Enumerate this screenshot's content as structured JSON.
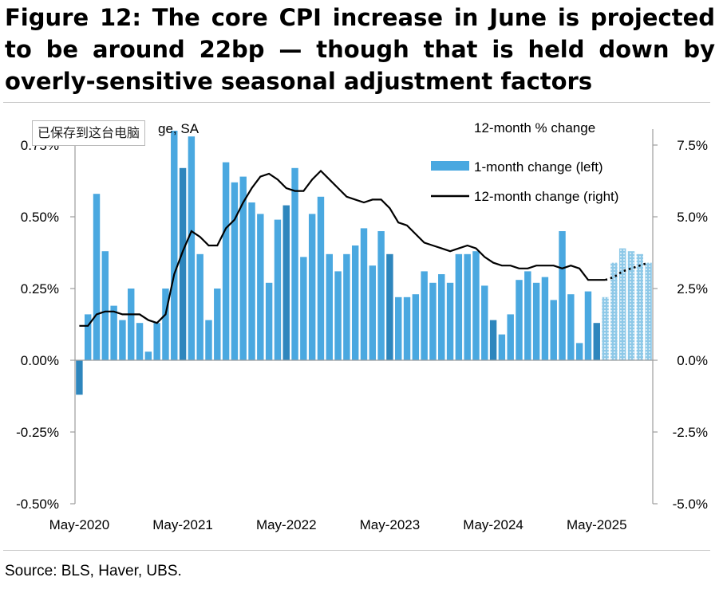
{
  "title": "Figure 12: The core CPI increase in June is projected to be around 22bp — though that is held down by overly-sensitive seasonal adjustment factors",
  "source": "Source: BLS, Haver, UBS.",
  "watermark_text": "已保存到这台电脑",
  "colors": {
    "bar": "#4aa8e0",
    "bar_highlight": "#2e86bd",
    "projected": "#8ec9e8",
    "line": "#000000",
    "axis": "#9c9c9c"
  },
  "chart_data": {
    "type": "bar+line",
    "left_axis_title": "% change, SA",
    "left_axis_title_visible": "ge, SA",
    "right_axis_title": "12-month % change",
    "ylim_left": [
      -0.5,
      0.75
    ],
    "ylim_right": [
      -5.0,
      7.5
    ],
    "y_ticks_left": [
      "0.75%",
      "0.50%",
      "0.25%",
      "0.00%",
      "-0.25%",
      "-0.50%"
    ],
    "y_ticks_right": [
      "7.5%",
      "5.0%",
      "2.5%",
      "0.0%",
      "-2.5%",
      "-5.0%"
    ],
    "x_ticks": [
      "May-2020",
      "May-2021",
      "May-2022",
      "May-2023",
      "May-2024",
      "May-2025"
    ],
    "legend": {
      "bars": "1-month change (left)",
      "line": "12-month change (right)"
    },
    "series": [
      {
        "name": "1-month change (left)",
        "start": "May-2020",
        "values": [
          -0.12,
          0.16,
          0.58,
          0.38,
          0.19,
          0.14,
          0.25,
          0.13,
          0.03,
          0.13,
          0.25,
          0.8,
          0.67,
          0.78,
          0.37,
          0.14,
          0.25,
          0.69,
          0.62,
          0.64,
          0.55,
          0.51,
          0.27,
          0.49,
          0.54,
          0.67,
          0.36,
          0.51,
          0.57,
          0.37,
          0.31,
          0.37,
          0.4,
          0.46,
          0.33,
          0.45,
          0.37,
          0.22,
          0.22,
          0.23,
          0.31,
          0.27,
          0.3,
          0.27,
          0.37,
          0.37,
          0.38,
          0.26,
          0.14,
          0.09,
          0.16,
          0.28,
          0.31,
          0.27,
          0.29,
          0.21,
          0.45,
          0.23,
          0.06,
          0.24,
          0.13,
          0.22,
          0.34,
          0.39,
          0.38,
          0.37,
          0.34
        ],
        "highlighted_indices": [
          0,
          12,
          24,
          36,
          48,
          60
        ],
        "projected_from_index": 61
      },
      {
        "name": "12-month change (right)",
        "start": "May-2020",
        "values": [
          1.2,
          1.2,
          1.6,
          1.7,
          1.7,
          1.6,
          1.6,
          1.6,
          1.4,
          1.3,
          1.6,
          3.0,
          3.8,
          4.5,
          4.3,
          4.0,
          4.0,
          4.6,
          4.9,
          5.5,
          6.0,
          6.4,
          6.5,
          6.3,
          6.0,
          5.9,
          5.9,
          6.3,
          6.6,
          6.3,
          6.0,
          5.7,
          5.6,
          5.5,
          5.6,
          5.6,
          5.3,
          4.8,
          4.7,
          4.4,
          4.1,
          4.0,
          3.9,
          3.8,
          3.9,
          4.0,
          3.9,
          3.6,
          3.4,
          3.3,
          3.3,
          3.2,
          3.2,
          3.3,
          3.3,
          3.3,
          3.2,
          3.3,
          3.2,
          2.8,
          2.8,
          2.8,
          2.9,
          3.1,
          3.2,
          3.3,
          3.4
        ],
        "projected_from_index": 61
      }
    ]
  }
}
